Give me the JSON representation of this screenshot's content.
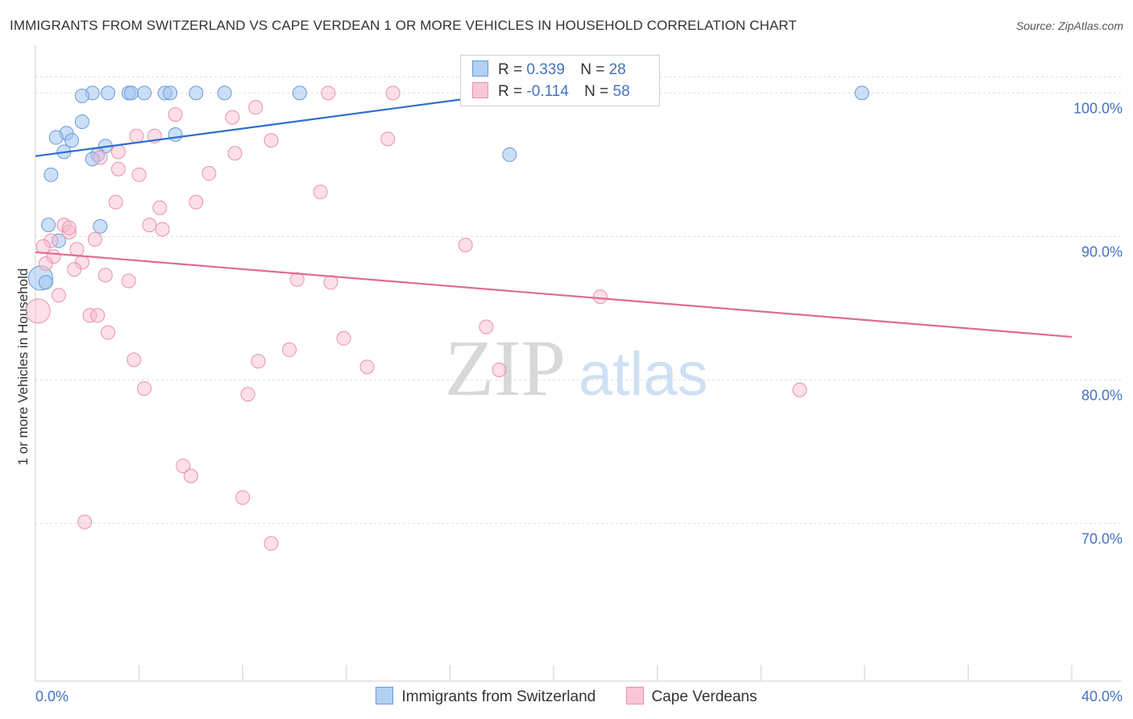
{
  "title": "IMMIGRANTS FROM SWITZERLAND VS CAPE VERDEAN 1 OR MORE VEHICLES IN HOUSEHOLD CORRELATION CHART",
  "source": "Source: ZipAtlas.com",
  "watermark": {
    "zip": "ZIP",
    "atlas": "atlas"
  },
  "legend": {
    "r_label": "R =",
    "n_label": "N =",
    "rows": [
      {
        "r": "0.339",
        "n": "28",
        "color": "#6a9ad8"
      },
      {
        "r": "-0.114",
        "n": "58",
        "color": "#e890b0"
      }
    ]
  },
  "chart_data": {
    "type": "scatter",
    "title": "IMMIGRANTS FROM SWITZERLAND VS CAPE VERDEAN 1 OR MORE VEHICLES IN HOUSEHOLD CORRELATION CHART",
    "xlabel": "",
    "ylabel": "1 or more Vehicles in Household",
    "xlim": [
      0,
      40
    ],
    "ylim": [
      59,
      103
    ],
    "x_tick_labels": [
      "0.0%",
      "40.0%"
    ],
    "y_ticks": [
      70,
      80,
      90,
      100
    ],
    "y_tick_labels": [
      "70.0%",
      "80.0%",
      "90.0%",
      "100.0%"
    ],
    "grid": true,
    "legend_position": "bottom",
    "series": [
      {
        "name": "Immigrants from Switzerland",
        "color": "#6a9ad8",
        "trend": {
          "x": [
            0,
            18.3
          ],
          "y": [
            95.6,
            100.0
          ]
        },
        "points": [
          {
            "x": 2.2,
            "y": 100.0
          },
          {
            "x": 2.8,
            "y": 100.0
          },
          {
            "x": 3.6,
            "y": 100.0
          },
          {
            "x": 3.7,
            "y": 100.0
          },
          {
            "x": 4.2,
            "y": 100.0
          },
          {
            "x": 5.0,
            "y": 100.0
          },
          {
            "x": 5.2,
            "y": 100.0
          },
          {
            "x": 6.2,
            "y": 100.0
          },
          {
            "x": 7.3,
            "y": 100.0
          },
          {
            "x": 10.2,
            "y": 100.0
          },
          {
            "x": 31.9,
            "y": 100.0
          },
          {
            "x": 1.8,
            "y": 99.8
          },
          {
            "x": 1.8,
            "y": 98.0
          },
          {
            "x": 1.2,
            "y": 97.2
          },
          {
            "x": 0.8,
            "y": 96.9
          },
          {
            "x": 1.4,
            "y": 96.7
          },
          {
            "x": 5.4,
            "y": 97.1
          },
          {
            "x": 2.7,
            "y": 96.3
          },
          {
            "x": 1.1,
            "y": 95.9
          },
          {
            "x": 2.4,
            "y": 95.7
          },
          {
            "x": 2.2,
            "y": 95.4
          },
          {
            "x": 18.3,
            "y": 95.7
          },
          {
            "x": 0.6,
            "y": 94.3
          },
          {
            "x": 0.5,
            "y": 90.8
          },
          {
            "x": 2.5,
            "y": 90.7
          },
          {
            "x": 0.9,
            "y": 89.7
          },
          {
            "x": 0.2,
            "y": 87.1
          },
          {
            "x": 0.4,
            "y": 86.8
          }
        ]
      },
      {
        "name": "Cape Verdeans",
        "color": "#e890b0",
        "trend": {
          "x": [
            0,
            40
          ],
          "y": [
            88.9,
            83.0
          ]
        },
        "points": [
          {
            "x": 11.3,
            "y": 100.0
          },
          {
            "x": 13.8,
            "y": 100.0
          },
          {
            "x": 8.5,
            "y": 99.0
          },
          {
            "x": 5.4,
            "y": 98.5
          },
          {
            "x": 7.6,
            "y": 98.3
          },
          {
            "x": 3.9,
            "y": 97.0
          },
          {
            "x": 4.6,
            "y": 97.0
          },
          {
            "x": 9.1,
            "y": 96.7
          },
          {
            "x": 13.6,
            "y": 96.8
          },
          {
            "x": 3.2,
            "y": 95.9
          },
          {
            "x": 7.7,
            "y": 95.8
          },
          {
            "x": 2.5,
            "y": 95.5
          },
          {
            "x": 3.2,
            "y": 94.7
          },
          {
            "x": 4.0,
            "y": 94.3
          },
          {
            "x": 6.7,
            "y": 94.4
          },
          {
            "x": 11.0,
            "y": 93.1
          },
          {
            "x": 3.1,
            "y": 92.4
          },
          {
            "x": 6.2,
            "y": 92.4
          },
          {
            "x": 4.8,
            "y": 92.0
          },
          {
            "x": 1.1,
            "y": 90.8
          },
          {
            "x": 4.4,
            "y": 90.8
          },
          {
            "x": 4.9,
            "y": 90.5
          },
          {
            "x": 1.3,
            "y": 90.3
          },
          {
            "x": 0.6,
            "y": 89.7
          },
          {
            "x": 2.3,
            "y": 89.8
          },
          {
            "x": 0.3,
            "y": 89.3
          },
          {
            "x": 1.6,
            "y": 89.1
          },
          {
            "x": 16.6,
            "y": 89.4
          },
          {
            "x": 0.7,
            "y": 88.6
          },
          {
            "x": 0.4,
            "y": 88.1
          },
          {
            "x": 1.8,
            "y": 88.2
          },
          {
            "x": 1.5,
            "y": 87.7
          },
          {
            "x": 2.7,
            "y": 87.3
          },
          {
            "x": 3.6,
            "y": 86.9
          },
          {
            "x": 10.1,
            "y": 87.0
          },
          {
            "x": 11.4,
            "y": 86.8
          },
          {
            "x": 0.9,
            "y": 85.9
          },
          {
            "x": 21.8,
            "y": 85.8
          },
          {
            "x": 0.1,
            "y": 84.8
          },
          {
            "x": 2.1,
            "y": 84.5
          },
          {
            "x": 2.4,
            "y": 84.5
          },
          {
            "x": 17.4,
            "y": 83.7
          },
          {
            "x": 2.8,
            "y": 83.3
          },
          {
            "x": 11.9,
            "y": 82.9
          },
          {
            "x": 9.8,
            "y": 82.1
          },
          {
            "x": 3.8,
            "y": 81.4
          },
          {
            "x": 8.6,
            "y": 81.3
          },
          {
            "x": 12.8,
            "y": 80.9
          },
          {
            "x": 17.9,
            "y": 80.7
          },
          {
            "x": 4.2,
            "y": 79.4
          },
          {
            "x": 8.2,
            "y": 79.0
          },
          {
            "x": 29.5,
            "y": 79.3
          },
          {
            "x": 5.7,
            "y": 74.0
          },
          {
            "x": 6.0,
            "y": 73.3
          },
          {
            "x": 8.0,
            "y": 71.8
          },
          {
            "x": 1.9,
            "y": 70.1
          },
          {
            "x": 9.1,
            "y": 68.6
          },
          {
            "x": 1.3,
            "y": 90.6
          }
        ]
      }
    ]
  }
}
